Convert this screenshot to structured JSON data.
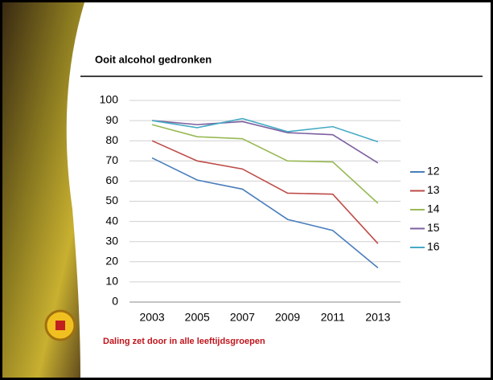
{
  "chart_data": {
    "type": "line",
    "title": "Ooit alcohol gedronken",
    "footnote": "Daling zet door in alle leeftijdsgroepen",
    "categories": [
      "2003",
      "2005",
      "2007",
      "2009",
      "2011",
      "2013"
    ],
    "series": [
      {
        "name": "12",
        "color": "#4a7ebb",
        "values": [
          71.5,
          60.5,
          56,
          41,
          35.5,
          17
        ]
      },
      {
        "name": "13",
        "color": "#be4b48",
        "values": [
          80,
          70,
          66,
          54,
          53.5,
          29
        ]
      },
      {
        "name": "14",
        "color": "#98b954",
        "values": [
          88,
          82,
          81,
          70,
          69.5,
          49
        ]
      },
      {
        "name": "15",
        "color": "#7d60a0",
        "values": [
          90,
          88,
          89.5,
          84,
          83,
          69
        ]
      },
      {
        "name": "16",
        "color": "#46aac5",
        "values": [
          90,
          86.5,
          91,
          84.5,
          87,
          79.5
        ]
      }
    ],
    "ylim": [
      0,
      100
    ],
    "yticks": [
      0,
      10,
      20,
      30,
      40,
      50,
      60,
      70,
      80,
      90,
      100
    ],
    "grid": true,
    "legend": "right"
  }
}
